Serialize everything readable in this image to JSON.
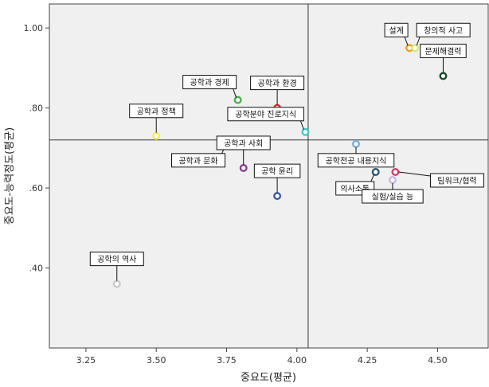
{
  "chart_data": {
    "type": "scatter",
    "title": "",
    "xlabel": "중요도(평균)",
    "ylabel": "중요도-능력정도(평균)",
    "xlim": [
      3.12,
      4.68
    ],
    "ylim": [
      0.2,
      1.06
    ],
    "xticks": [
      3.25,
      3.5,
      3.75,
      4.0,
      4.25,
      4.5
    ],
    "xtick_labels": [
      "3.25",
      "3.50",
      "3.75",
      "4.00",
      "4.25",
      "4.50"
    ],
    "yticks": [
      0.4,
      0.6,
      0.8,
      1.0
    ],
    "ytick_labels": [
      ".40",
      ".60",
      ".80",
      "1.00"
    ],
    "reference_lines": {
      "x": 4.04,
      "y": 0.72
    },
    "grid": false,
    "plot_background": "#f0f0f0",
    "points": [
      {
        "label": "설계",
        "x": 4.4,
        "y": 0.95,
        "color": "#f39c12",
        "label_pos": "above-left"
      },
      {
        "label": "창의적 사고",
        "x": 4.42,
        "y": 0.95,
        "color": "#d6e87a",
        "label_pos": "above-right"
      },
      {
        "label": "문제해결력",
        "x": 4.52,
        "y": 0.88,
        "color": "#1a4a2a",
        "label_pos": "above"
      },
      {
        "label": "공학과 경제",
        "x": 3.79,
        "y": 0.82,
        "color": "#4caf50",
        "label_pos": "above-left"
      },
      {
        "label": "공학과 환경",
        "x": 3.93,
        "y": 0.8,
        "color": "#e52a2a",
        "label_pos": "above"
      },
      {
        "label": "공학분야 진로지식",
        "x": 4.03,
        "y": 0.74,
        "color": "#40c8c8",
        "label_pos": "above-left"
      },
      {
        "label": "공학과 정책",
        "x": 3.5,
        "y": 0.73,
        "color": "#f2ec5a",
        "label_pos": "above"
      },
      {
        "label": "공학전공 내용지식",
        "x": 4.21,
        "y": 0.71,
        "color": "#7ab0dd",
        "label_pos": "below"
      },
      {
        "label": "공학과 문화",
        "x": 3.75,
        "y": 0.71,
        "color": "#e8d8b8",
        "label_pos": "below-left"
      },
      {
        "label": "공학과 사회",
        "x": 3.81,
        "y": 0.65,
        "color": "#8e3a9a",
        "label_pos": "above"
      },
      {
        "label": "의사소통",
        "x": 4.28,
        "y": 0.64,
        "color": "#2a5a70",
        "label_pos": "below-left"
      },
      {
        "label": "팀워크/협력",
        "x": 4.35,
        "y": 0.64,
        "color": "#d04070",
        "label_pos": "right"
      },
      {
        "label": "실험/실습 능",
        "x": 4.34,
        "y": 0.62,
        "color": "#c8b8e8",
        "label_pos": "below"
      },
      {
        "label": "공학 윤리",
        "x": 3.93,
        "y": 0.58,
        "color": "#3a5aa0",
        "label_pos": "above"
      },
      {
        "label": "공학의 역사",
        "x": 3.36,
        "y": 0.36,
        "color": "#c8c8c8",
        "label_pos": "above"
      }
    ]
  }
}
